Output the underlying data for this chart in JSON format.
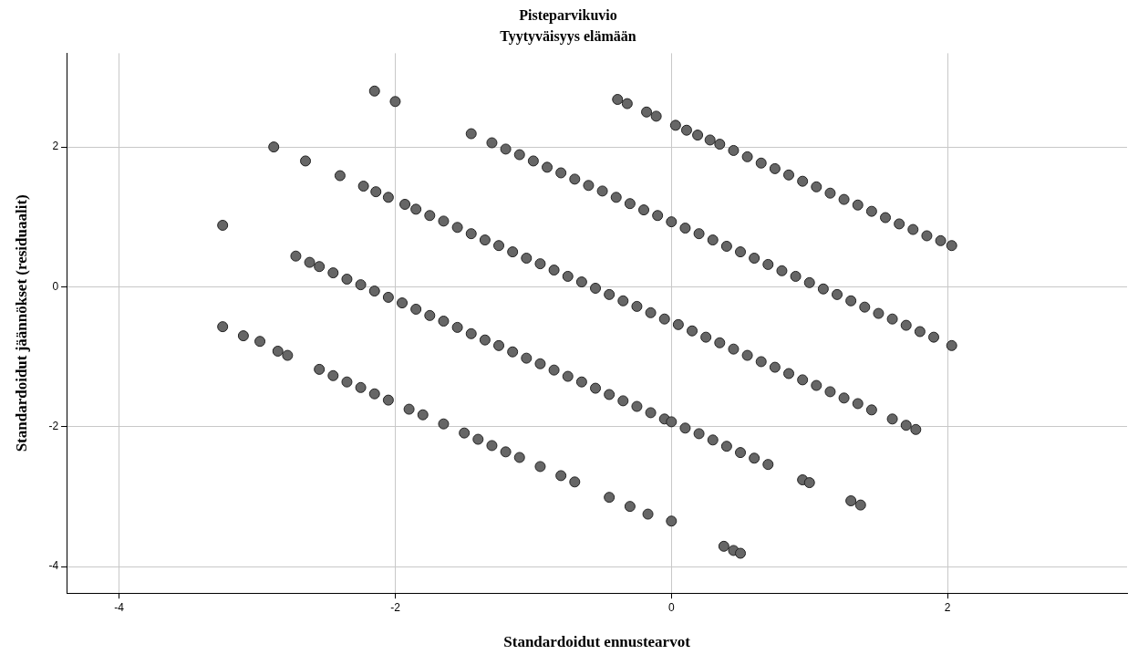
{
  "chart_data": {
    "type": "scatter",
    "title": "Pisteparvikuvio",
    "subtitle": "Tyytyväisyys elämään",
    "xlabel": "Standardoidut ennustearvot",
    "ylabel": "Standardoidut jäännökset (residuaalit)",
    "x": [
      -0.39,
      -0.32,
      -0.18,
      -0.11,
      0.03,
      0.11,
      0.19,
      0.28,
      0.35,
      0.45,
      0.55,
      0.65,
      0.75,
      0.85,
      0.95,
      1.05,
      1.15,
      1.25,
      1.35,
      1.45,
      1.55,
      1.65,
      1.75,
      1.85,
      1.95,
      2.03,
      -2.15,
      -2.0,
      -1.45,
      -1.3,
      -1.2,
      -1.1,
      -1.0,
      -0.9,
      -0.8,
      -0.7,
      -0.6,
      -0.5,
      -0.4,
      -0.3,
      -0.2,
      -0.1,
      0,
      0.1,
      0.2,
      0.3,
      0.4,
      0.5,
      0.6,
      0.7,
      0.8,
      0.9,
      1.0,
      1.1,
      1.2,
      1.3,
      1.4,
      1.5,
      1.6,
      1.7,
      1.8,
      1.9,
      2.03,
      -2.88,
      -2.65,
      -2.4,
      -2.23,
      -2.14,
      -2.05,
      -1.93,
      -1.85,
      -1.75,
      -1.65,
      -1.55,
      -1.45,
      -1.35,
      -1.25,
      -1.15,
      -1.05,
      -0.95,
      -0.85,
      -0.75,
      -0.65,
      -0.55,
      -0.45,
      -0.35,
      -0.25,
      -0.15,
      -0.05,
      0.05,
      0.15,
      0.25,
      0.35,
      0.45,
      0.55,
      0.65,
      0.75,
      0.85,
      0.95,
      1.05,
      1.15,
      1.25,
      1.35,
      1.45,
      1.6,
      1.7,
      1.77,
      -3.25,
      -2.72,
      -2.62,
      -2.55,
      -2.45,
      -2.35,
      -2.25,
      -2.15,
      -2.05,
      -1.95,
      -1.85,
      -1.75,
      -1.65,
      -1.55,
      -1.45,
      -1.35,
      -1.25,
      -1.15,
      -1.05,
      -0.95,
      -0.85,
      -0.75,
      -0.65,
      -0.55,
      -0.45,
      -0.35,
      -0.25,
      -0.15,
      -0.05,
      0.0,
      0.1,
      0.2,
      0.3,
      0.4,
      0.5,
      0.6,
      0.7,
      0.95,
      1.0,
      1.3,
      1.37,
      -3.25,
      -3.1,
      -2.98,
      -2.85,
      -2.78,
      -2.55,
      -2.45,
      -2.35,
      -2.25,
      -2.15,
      -2.05,
      -1.9,
      -1.8,
      -1.65,
      -1.5,
      -1.4,
      -1.3,
      -1.2,
      -1.1,
      -0.95,
      -0.8,
      -0.7,
      -0.45,
      -0.3,
      -0.17,
      0.0,
      0.38,
      0.45,
      0.5
    ],
    "values": [
      2.68,
      2.62,
      2.5,
      2.44,
      2.31,
      2.24,
      2.17,
      2.1,
      2.04,
      1.95,
      1.86,
      1.77,
      1.69,
      1.6,
      1.51,
      1.43,
      1.34,
      1.25,
      1.17,
      1.08,
      0.99,
      0.9,
      0.82,
      0.73,
      0.66,
      0.59,
      2.8,
      2.65,
      2.19,
      2.06,
      1.97,
      1.89,
      1.8,
      1.71,
      1.63,
      1.54,
      1.45,
      1.37,
      1.28,
      1.19,
      1.1,
      1.02,
      0.93,
      0.84,
      0.76,
      0.67,
      0.58,
      0.5,
      0.41,
      0.32,
      0.23,
      0.15,
      0.06,
      -0.03,
      -0.11,
      -0.2,
      -0.29,
      -0.38,
      -0.46,
      -0.55,
      -0.64,
      -0.72,
      -0.84,
      2.0,
      1.8,
      1.59,
      1.44,
      1.36,
      1.28,
      1.18,
      1.11,
      1.02,
      0.94,
      0.85,
      0.76,
      0.67,
      0.59,
      0.5,
      0.41,
      0.33,
      0.24,
      0.15,
      0.07,
      -0.02,
      -0.11,
      -0.2,
      -0.28,
      -0.37,
      -0.46,
      -0.54,
      -0.63,
      -0.72,
      -0.8,
      -0.89,
      -0.98,
      -1.07,
      -1.15,
      -1.24,
      -1.33,
      -1.41,
      -1.5,
      -1.59,
      -1.67,
      -1.76,
      -1.89,
      -1.98,
      -2.04,
      0.88,
      0.44,
      0.35,
      0.29,
      0.2,
      0.11,
      0.03,
      -0.06,
      -0.15,
      -0.23,
      -0.32,
      -0.41,
      -0.49,
      -0.58,
      -0.67,
      -0.76,
      -0.84,
      -0.93,
      -1.02,
      -1.1,
      -1.19,
      -1.28,
      -1.36,
      -1.45,
      -1.54,
      -1.63,
      -1.71,
      -1.8,
      -1.89,
      -1.93,
      -2.02,
      -2.1,
      -2.19,
      -2.28,
      -2.37,
      -2.45,
      -2.54,
      -2.76,
      -2.8,
      -3.06,
      -3.12,
      -0.57,
      -0.7,
      -0.78,
      -0.92,
      -0.98,
      -1.18,
      -1.27,
      -1.36,
      -1.44,
      -1.53,
      -1.62,
      -1.75,
      -1.83,
      -1.96,
      -2.09,
      -2.18,
      -2.27,
      -2.36,
      -2.44,
      -2.57,
      -2.7,
      -2.79,
      -3.01,
      -3.14,
      -3.25,
      -3.35,
      -3.71,
      -3.77,
      -3.81
    ],
    "color": "#666666",
    "marker": "circle",
    "grid": true,
    "legend": false,
    "xlim": [
      -4.38,
      3.3
    ],
    "xticks": [
      -4,
      -2,
      0,
      2
    ],
    "ylim": [
      -4.38,
      3.34
    ],
    "yticks": [
      -4,
      -2,
      0,
      2
    ]
  }
}
